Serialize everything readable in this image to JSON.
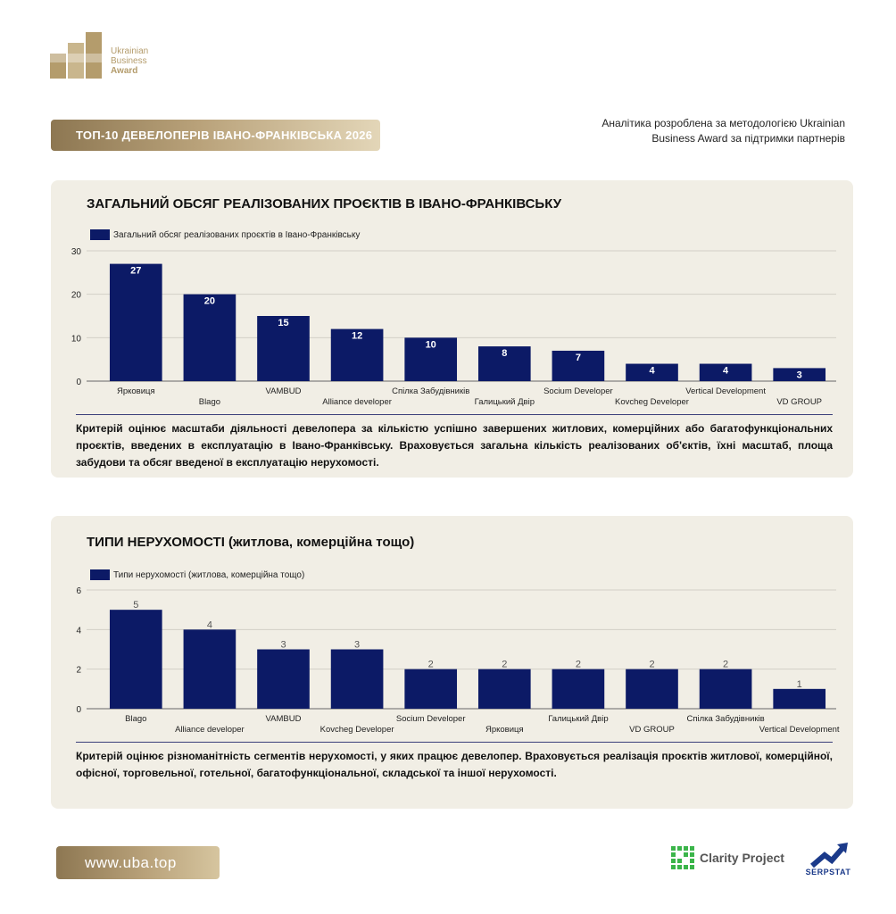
{
  "brand": {
    "logo_text_line1": "Ukrainian",
    "logo_text_line2": "Business",
    "logo_text_line3": "Award",
    "gold": "#b49c6c"
  },
  "header": {
    "title": "ТОП-10 ДЕВЕЛОПЕРІВ ІВАНО-ФРАНКІВСЬКА 2026",
    "note": "Аналітика розроблена за методологією Ukrainian Business Award за підтримки партнерів"
  },
  "charts": [
    {
      "title": "ЗАГАЛЬНИЙ ОБСЯГ РЕАЛІЗОВАНИХ ПРОЄКТІВ В ІВАНО-ФРАНКІВСЬКУ",
      "legend": "Загальний обсяг реалізованих проєктів в Івано-Франківську",
      "note": "Критерій оцінює масштаби діяльності девелопера за кількістю успішно завершених житлових, комерційних або багатофункціональних проєктів, введених в експлуатацію в Івано-Франківську. Враховується загальна кількість реалізованих об'єктів, їхні масштаб, площа забудови та обсяг введеної в експлуатацію нерухомості."
    },
    {
      "title": "ТИПИ НЕРУХОМОСТІ (житлова, комерційна тощо)",
      "legend": "Типи нерухомості (житлова, комерційна тощо)",
      "note": "Критерій оцінює різноманітність сегментів нерухомості, у яких працює девелопер. Враховується реалізація проєктів житлової, комерційної, офісної, торговельної, готельної, багатофункціональної, складської та іншої нерухомості."
    }
  ],
  "chart_data": [
    {
      "type": "bar",
      "title": "ЗАГАЛЬНИЙ ОБСЯГ РЕАЛІЗОВАНИХ ПРОЄКТІВ В ІВАНО-ФРАНКІВСЬКУ",
      "categories": [
        "Ярковиця",
        "Blago",
        "VAMBUD",
        "Alliance developer",
        "Спілка Забудівників",
        "Галицький Двір",
        "Socium Developer",
        "Kovcheg Developer",
        "Vertical Development",
        "VD GROUP"
      ],
      "series": [
        {
          "name": "Загальний обсяг реалізованих проєктів в Івано-Франківську",
          "values": [
            27,
            20,
            15,
            12,
            10,
            8,
            7,
            4,
            4,
            3
          ]
        }
      ],
      "ylim": [
        0,
        30
      ],
      "yticks": [
        0,
        10,
        20,
        30
      ],
      "bar_color": "#0c1a66",
      "label_position": "inside",
      "grid": true,
      "legend_position": "top-left"
    },
    {
      "type": "bar",
      "title": "ТИПИ НЕРУХОМОСТІ (житлова, комерційна тощо)",
      "categories": [
        "Blago",
        "Alliance developer",
        "VAMBUD",
        "Kovcheg Developer",
        "Socium Developer",
        "Ярковиця",
        "Галицький Двір",
        "VD GROUP",
        "Спілка Забудівників",
        "Vertical Development"
      ],
      "series": [
        {
          "name": "Типи нерухомості (житлова, комерційна тощо)",
          "values": [
            5,
            4,
            3,
            3,
            2,
            2,
            2,
            2,
            2,
            1
          ]
        }
      ],
      "ylim": [
        0,
        6
      ],
      "yticks": [
        0,
        2,
        4,
        6
      ],
      "bar_color": "#0c1a66",
      "label_position": "above",
      "grid": true,
      "legend_position": "top-left"
    }
  ],
  "footer": {
    "url": "www.uba.top",
    "partner1": "Clarity Project",
    "partner2": "SERPSTAT"
  }
}
